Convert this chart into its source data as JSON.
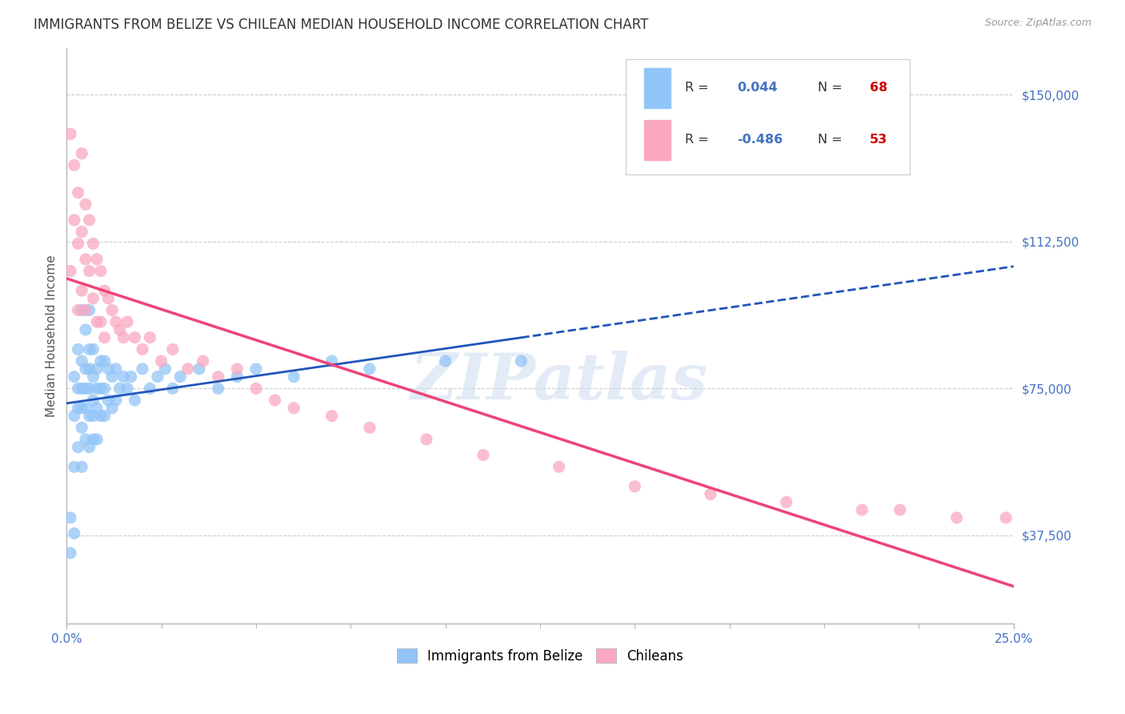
{
  "title": "IMMIGRANTS FROM BELIZE VS CHILEAN MEDIAN HOUSEHOLD INCOME CORRELATION CHART",
  "source": "Source: ZipAtlas.com",
  "ylabel": "Median Household Income",
  "y_ticks": [
    37500,
    75000,
    112500,
    150000
  ],
  "y_tick_labels": [
    "$37,500",
    "$75,000",
    "$112,500",
    "$150,000"
  ],
  "x_min": 0.0,
  "x_max": 0.25,
  "y_min": 15000,
  "y_max": 162000,
  "belize_R": "0.044",
  "belize_N": "68",
  "chilean_R": "-0.486",
  "chilean_N": "53",
  "belize_color": "#92c5f7",
  "chilean_color": "#f9a8c0",
  "belize_line_color": "#2255bb",
  "chilean_line_color": "#ee4477",
  "watermark": "ZIPatlas",
  "ytick_color": "#4472c4",
  "xtick_color": "#4472c4",
  "legend_R_color": "#4472c4",
  "legend_N_color": "#ff0000",
  "title_fontsize": 12,
  "axis_label_fontsize": 11,
  "tick_label_fontsize": 11,
  "background_color": "#ffffff",
  "grid_color": "#cccccc",
  "belize_scatter_x": [
    0.001,
    0.001,
    0.002,
    0.002,
    0.002,
    0.002,
    0.003,
    0.003,
    0.003,
    0.003,
    0.004,
    0.004,
    0.004,
    0.004,
    0.004,
    0.004,
    0.005,
    0.005,
    0.005,
    0.005,
    0.005,
    0.006,
    0.006,
    0.006,
    0.006,
    0.006,
    0.006,
    0.007,
    0.007,
    0.007,
    0.007,
    0.007,
    0.008,
    0.008,
    0.008,
    0.008,
    0.009,
    0.009,
    0.009,
    0.01,
    0.01,
    0.01,
    0.011,
    0.011,
    0.012,
    0.012,
    0.013,
    0.013,
    0.014,
    0.015,
    0.016,
    0.017,
    0.018,
    0.02,
    0.022,
    0.024,
    0.026,
    0.028,
    0.03,
    0.035,
    0.04,
    0.045,
    0.05,
    0.06,
    0.07,
    0.08,
    0.1,
    0.12
  ],
  "belize_scatter_y": [
    42000,
    33000,
    78000,
    68000,
    55000,
    38000,
    85000,
    75000,
    70000,
    60000,
    95000,
    82000,
    75000,
    70000,
    65000,
    55000,
    90000,
    80000,
    75000,
    70000,
    62000,
    95000,
    85000,
    80000,
    75000,
    68000,
    60000,
    85000,
    78000,
    72000,
    68000,
    62000,
    80000,
    75000,
    70000,
    62000,
    82000,
    75000,
    68000,
    82000,
    75000,
    68000,
    80000,
    72000,
    78000,
    70000,
    80000,
    72000,
    75000,
    78000,
    75000,
    78000,
    72000,
    80000,
    75000,
    78000,
    80000,
    75000,
    78000,
    80000,
    75000,
    78000,
    80000,
    78000,
    82000,
    80000,
    82000,
    82000
  ],
  "chilean_scatter_x": [
    0.001,
    0.001,
    0.002,
    0.002,
    0.003,
    0.003,
    0.003,
    0.004,
    0.004,
    0.004,
    0.005,
    0.005,
    0.005,
    0.006,
    0.006,
    0.007,
    0.007,
    0.008,
    0.008,
    0.009,
    0.009,
    0.01,
    0.01,
    0.011,
    0.012,
    0.013,
    0.014,
    0.015,
    0.016,
    0.018,
    0.02,
    0.022,
    0.025,
    0.028,
    0.032,
    0.036,
    0.04,
    0.045,
    0.05,
    0.055,
    0.06,
    0.07,
    0.08,
    0.095,
    0.11,
    0.13,
    0.15,
    0.17,
    0.19,
    0.21,
    0.22,
    0.235,
    0.248
  ],
  "chilean_scatter_y": [
    140000,
    105000,
    132000,
    118000,
    125000,
    112000,
    95000,
    135000,
    115000,
    100000,
    122000,
    108000,
    95000,
    118000,
    105000,
    112000,
    98000,
    108000,
    92000,
    105000,
    92000,
    100000,
    88000,
    98000,
    95000,
    92000,
    90000,
    88000,
    92000,
    88000,
    85000,
    88000,
    82000,
    85000,
    80000,
    82000,
    78000,
    80000,
    75000,
    72000,
    70000,
    68000,
    65000,
    62000,
    58000,
    55000,
    50000,
    48000,
    46000,
    44000,
    44000,
    42000,
    42000
  ]
}
